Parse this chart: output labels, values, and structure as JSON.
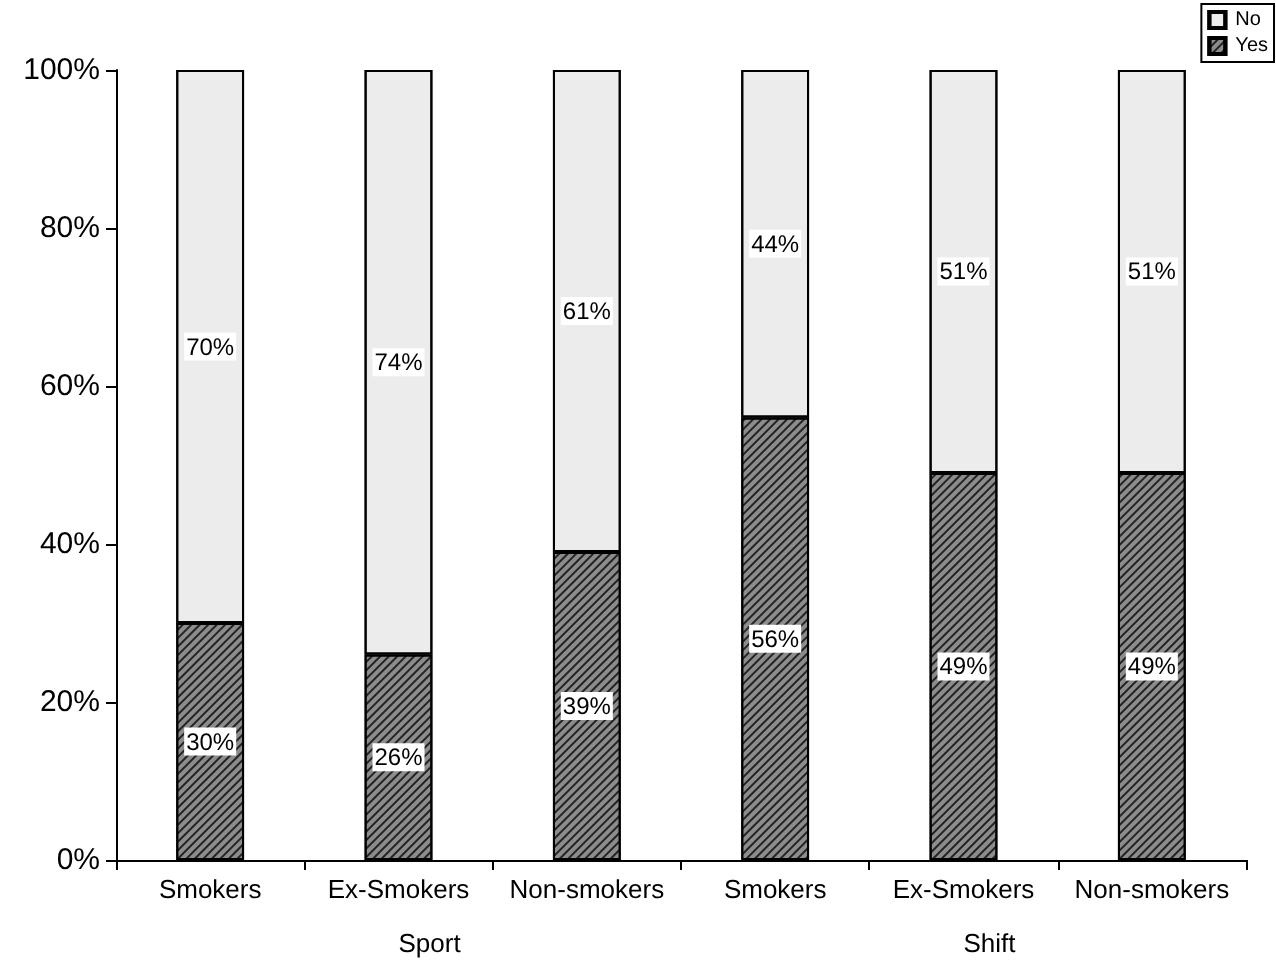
{
  "chart_data": {
    "type": "bar",
    "stacked": true,
    "categories": [
      "Smokers",
      "Ex-Smokers",
      "Non-smokers",
      "Smokers",
      "Ex-Smokers",
      "Non-smokers"
    ],
    "series": [
      {
        "name": "Yes",
        "color": "#8c8c8c",
        "values": [
          30,
          26,
          39,
          56,
          49,
          49
        ],
        "value_labels": [
          "30%",
          "26%",
          "39%",
          "56%",
          "49%",
          "49%"
        ]
      },
      {
        "name": "No",
        "color": "#ececec",
        "values": [
          70,
          74,
          61,
          44,
          51,
          51
        ],
        "value_labels": [
          "70%",
          "74%",
          "61%",
          "44%",
          "51%",
          "51%"
        ]
      }
    ],
    "annotations": [
      "Sport",
      "Shift"
    ],
    "ylim": [
      0,
      100
    ],
    "yticks": [
      {
        "value": 0,
        "label": "0%"
      },
      {
        "value": 20,
        "label": "20%"
      },
      {
        "value": 40,
        "label": "40%"
      },
      {
        "value": 60,
        "label": "60%"
      },
      {
        "value": 80,
        "label": "80%"
      },
      {
        "value": 100,
        "label": "100%"
      }
    ],
    "grid": false,
    "legend": "top right"
  }
}
